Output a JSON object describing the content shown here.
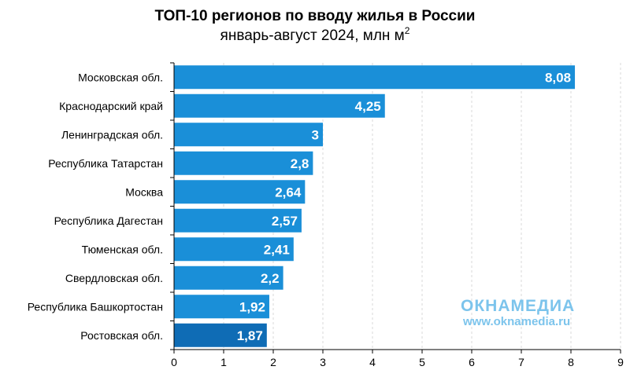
{
  "title": "ТОП-10 регионов по вводу жилья в России",
  "subtitle": "январь-август 2024, млн м",
  "subtitle_sup": "2",
  "watermark": {
    "logo": "ОКНАМЕДИА",
    "url": "www.oknamedia.ru"
  },
  "colors": {
    "bar": "#1a8fd8",
    "bar_dark": "#0f6cb5",
    "grid": "#d9d9d9",
    "label": "#ffffff"
  },
  "chart_data": {
    "type": "bar",
    "orientation": "horizontal",
    "categories": [
      "Московская обл.",
      "Краснодарский край",
      "Ленинградская обл.",
      "Республика Татарстан",
      "Москва",
      "Республика Дагестан",
      "Тюменская обл.",
      "Свердловская обл.",
      "Республика Башкортостан",
      "Ростовская обл."
    ],
    "values": [
      8.08,
      4.25,
      3,
      2.8,
      2.64,
      2.57,
      2.41,
      2.2,
      1.92,
      1.87
    ],
    "value_labels": [
      "8,08",
      "4,25",
      "3",
      "2,8",
      "2,64",
      "2,57",
      "2,41",
      "2,2",
      "1,92",
      "1,87"
    ],
    "xlim": [
      0,
      9
    ],
    "xticks": [
      "0",
      "1",
      "2",
      "3",
      "4",
      "5",
      "6",
      "7",
      "8",
      "9"
    ],
    "grid": true,
    "title": "ТОП-10 регионов по вводу жилья в России",
    "xlabel": "",
    "ylabel": ""
  }
}
